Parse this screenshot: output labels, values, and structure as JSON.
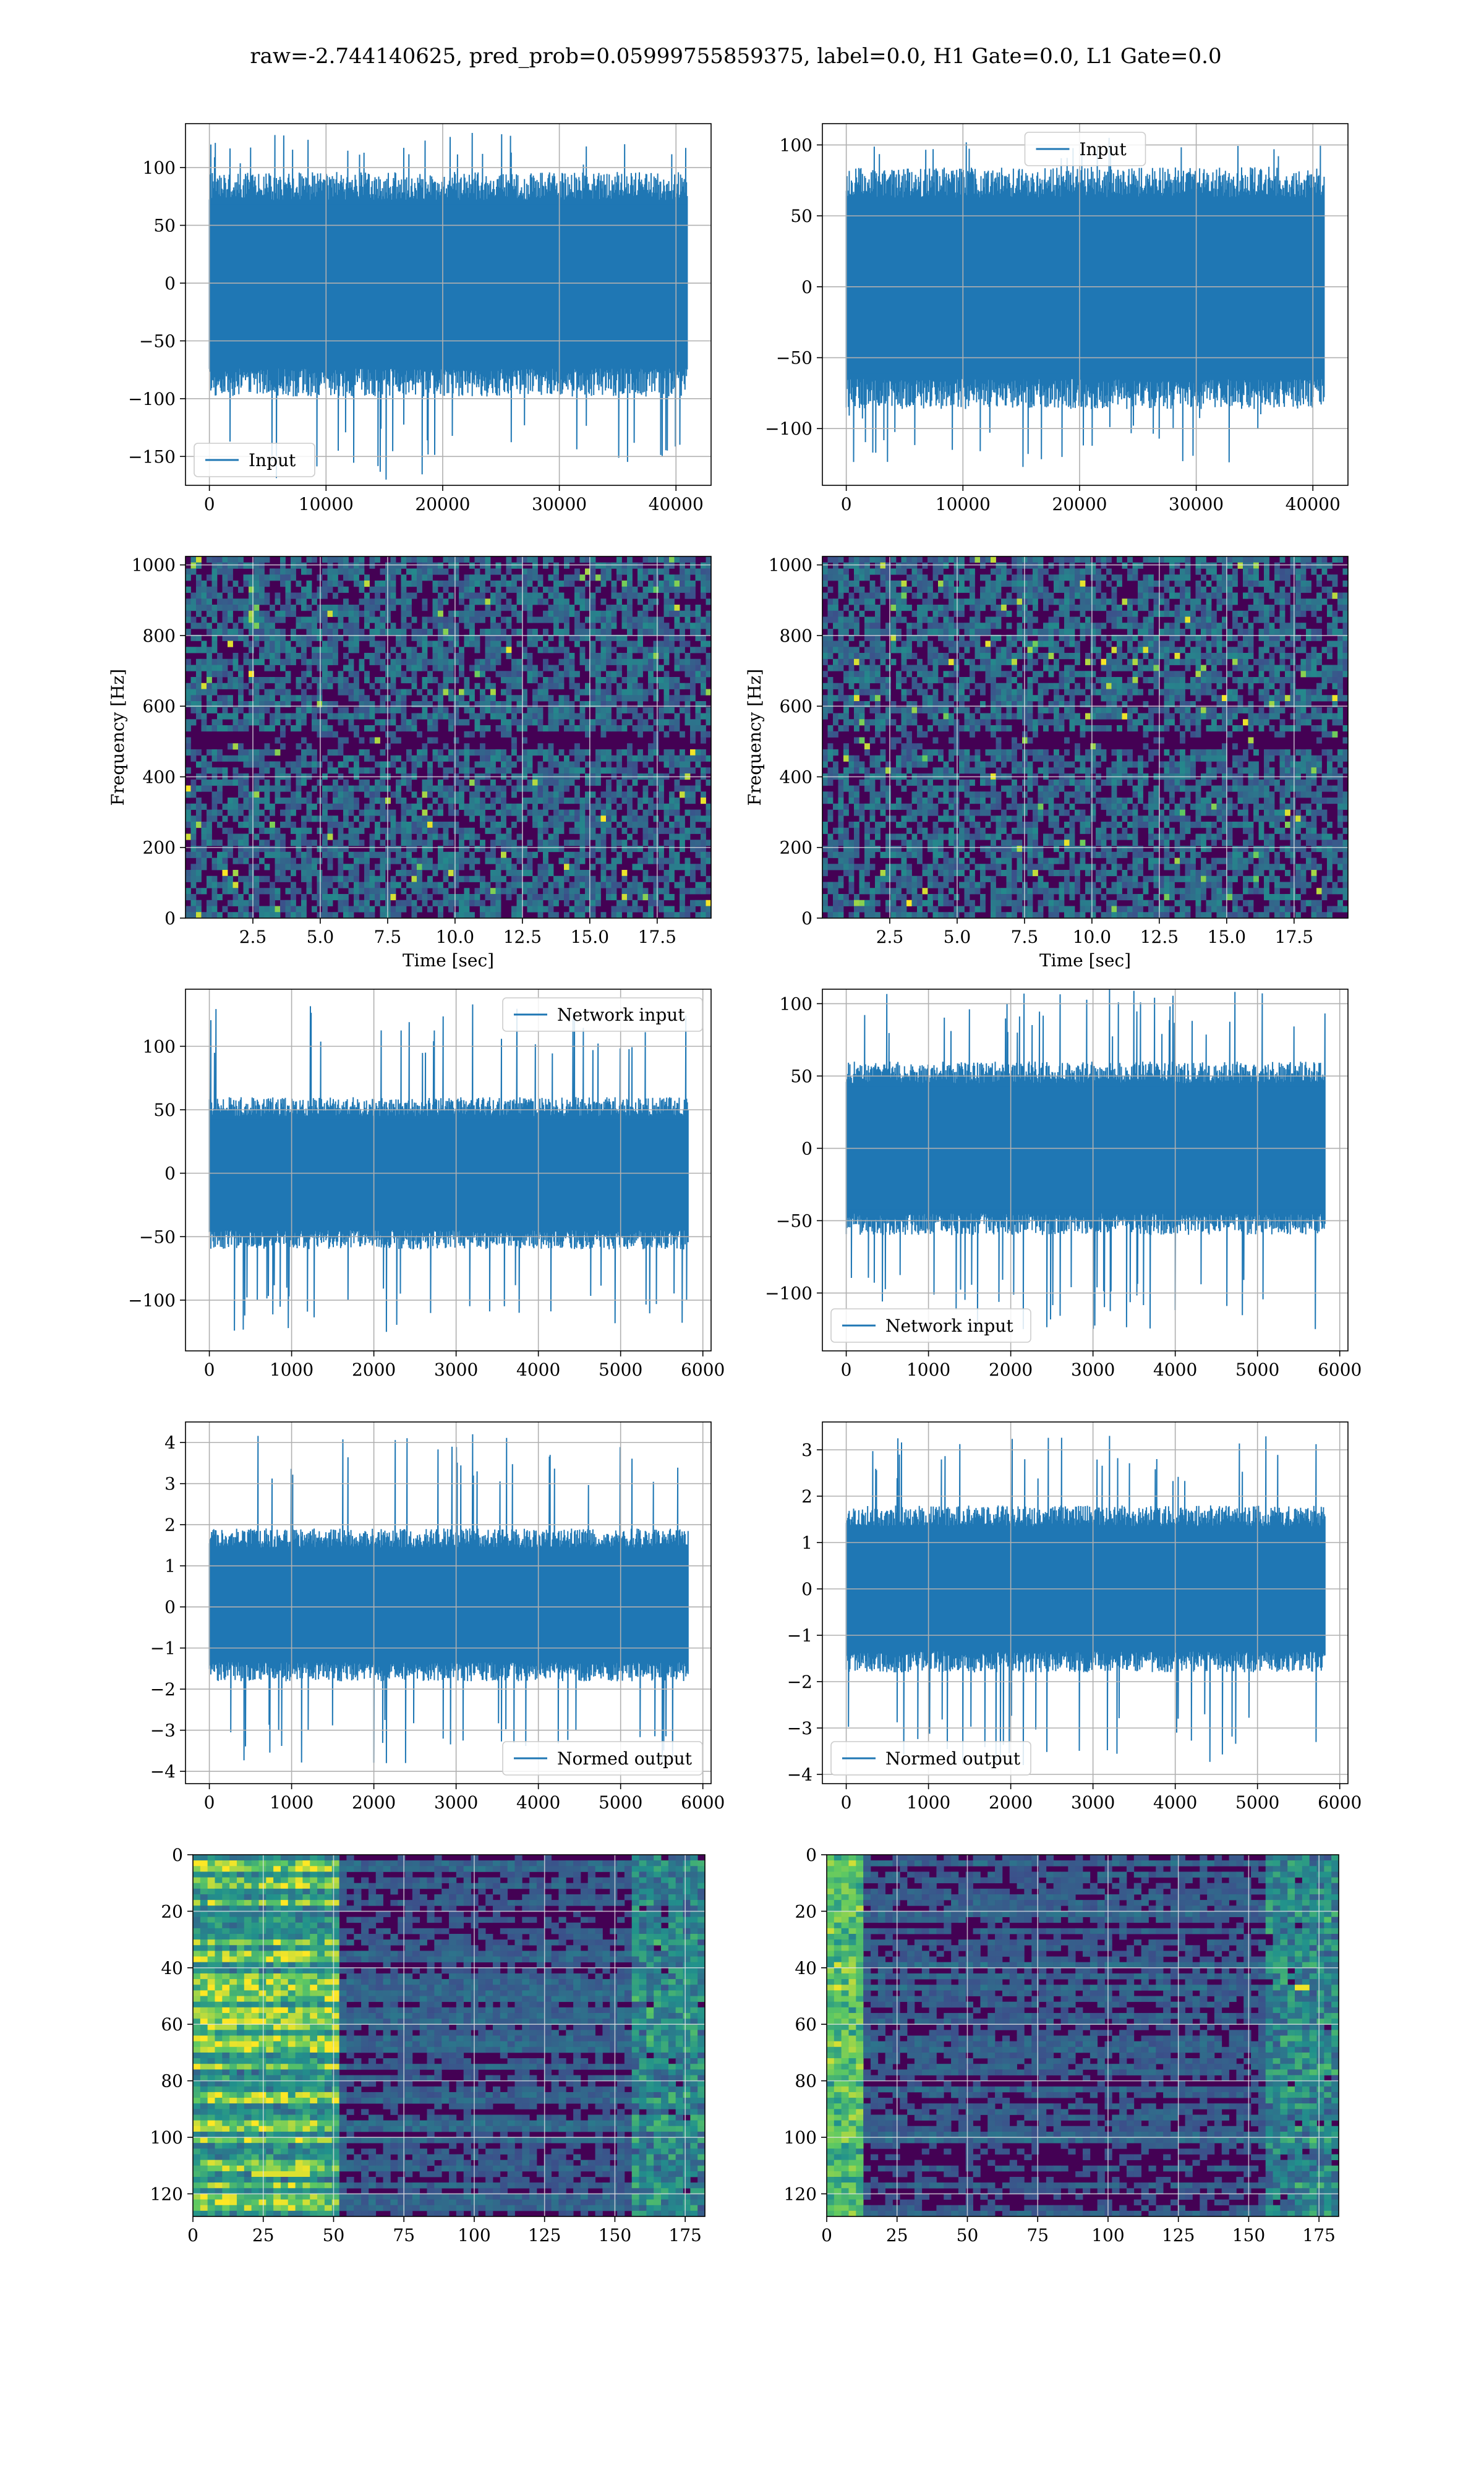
{
  "figure_title": "raw=-2.744140625, pred_prob=0.05999755859375, label=0.0, H1 Gate=0.0, L1 Gate=0.0",
  "colors": {
    "line": "#1f77b4",
    "grid": "#b0b0b0",
    "spine": "#000000",
    "heat_low": "#440154",
    "heat_mid": "#21918c",
    "heat_high": "#fde725"
  },
  "chart_data": [
    {
      "id": "input-h1",
      "type": "line",
      "legend": "Input",
      "legend_loc": "lower-left",
      "xlim": [
        -2048,
        43008
      ],
      "ylim": [
        -175,
        138
      ],
      "xticks": [
        0,
        10000,
        20000,
        30000,
        40000
      ],
      "yticks": [
        -150,
        -100,
        -50,
        0,
        50,
        100
      ],
      "series": [
        {
          "x_start": 0,
          "x_end": 40960,
          "band": [
            -82,
            80
          ],
          "extremes": [
            -170,
            130
          ]
        }
      ],
      "grid": true
    },
    {
      "id": "input-l1",
      "type": "line",
      "legend": "Input",
      "legend_loc": "upper-center",
      "xlim": [
        -2048,
        43008
      ],
      "ylim": [
        -140,
        115
      ],
      "xticks": [
        0,
        10000,
        20000,
        30000,
        40000
      ],
      "yticks": [
        -100,
        -50,
        0,
        50,
        100
      ],
      "series": [
        {
          "x_start": 0,
          "x_end": 40960,
          "band": [
            -72,
            70
          ],
          "extremes": [
            -127,
            105
          ]
        }
      ],
      "grid": true
    },
    {
      "id": "spectrogram-h1",
      "type": "heatmap",
      "xlabel": "Time [sec]",
      "ylabel": "Frequency [Hz]",
      "xlim": [
        0,
        19.5
      ],
      "ylim": [
        0,
        1024
      ],
      "xticks": [
        2.5,
        5.0,
        7.5,
        10.0,
        12.5,
        15.0,
        17.5
      ],
      "xtick_labels": [
        "2.5",
        "5.0",
        "7.5",
        "10.0",
        "12.5",
        "15.0",
        "17.5"
      ],
      "yticks": [
        0,
        200,
        400,
        600,
        800,
        1000
      ],
      "grid": true
    },
    {
      "id": "spectrogram-l1",
      "type": "heatmap",
      "xlabel": "Time [sec]",
      "ylabel": "Frequency [Hz]",
      "xlim": [
        0,
        19.5
      ],
      "ylim": [
        0,
        1024
      ],
      "xticks": [
        2.5,
        5.0,
        7.5,
        10.0,
        12.5,
        15.0,
        17.5
      ],
      "xtick_labels": [
        "2.5",
        "5.0",
        "7.5",
        "10.0",
        "12.5",
        "15.0",
        "17.5"
      ],
      "yticks": [
        0,
        200,
        400,
        600,
        800,
        1000
      ],
      "grid": true
    },
    {
      "id": "network-input-h1",
      "type": "line",
      "legend": "Network input",
      "legend_loc": "upper-right",
      "xlim": [
        -290,
        6100
      ],
      "ylim": [
        -140,
        145
      ],
      "xticks": [
        0,
        1000,
        2000,
        3000,
        4000,
        5000,
        6000
      ],
      "yticks": [
        -100,
        -50,
        0,
        50,
        100
      ],
      "series": [
        {
          "x_start": 0,
          "x_end": 5820,
          "band": [
            -50,
            50
          ],
          "extremes": [
            -125,
            133
          ]
        }
      ],
      "grid": true
    },
    {
      "id": "network-input-l1",
      "type": "line",
      "legend": "Network input",
      "legend_loc": "lower-left",
      "xlim": [
        -290,
        6100
      ],
      "ylim": [
        -140,
        110
      ],
      "xticks": [
        0,
        1000,
        2000,
        3000,
        4000,
        5000,
        6000
      ],
      "yticks": [
        -100,
        -50,
        0,
        50,
        100
      ],
      "series": [
        {
          "x_start": 0,
          "x_end": 5820,
          "band": [
            -50,
            50
          ],
          "extremes": [
            -125,
            110
          ]
        }
      ],
      "grid": true
    },
    {
      "id": "normed-output-h1",
      "type": "line",
      "legend": "Normed output",
      "legend_loc": "lower-right",
      "xlim": [
        -290,
        6100
      ],
      "ylim": [
        -4.3,
        4.5
      ],
      "xticks": [
        0,
        1000,
        2000,
        3000,
        4000,
        5000,
        6000
      ],
      "yticks": [
        -4,
        -3,
        -2,
        -1,
        0,
        1,
        2,
        3,
        4
      ],
      "series": [
        {
          "x_start": 0,
          "x_end": 5820,
          "band": [
            -1.5,
            1.6
          ],
          "extremes": [
            -3.8,
            4.2
          ]
        }
      ],
      "grid": true
    },
    {
      "id": "normed-output-l1",
      "type": "line",
      "legend": "Normed output",
      "legend_loc": "lower-left",
      "xlim": [
        -290,
        6100
      ],
      "ylim": [
        -4.2,
        3.6
      ],
      "xticks": [
        0,
        1000,
        2000,
        3000,
        4000,
        5000,
        6000
      ],
      "yticks": [
        -4,
        -3,
        -2,
        -1,
        0,
        1,
        2,
        3
      ],
      "series": [
        {
          "x_start": 0,
          "x_end": 5820,
          "band": [
            -1.5,
            1.5
          ],
          "extremes": [
            -3.8,
            3.3
          ]
        }
      ],
      "grid": true
    },
    {
      "id": "output-map-h1",
      "type": "heatmap",
      "xlim": [
        0,
        182
      ],
      "ylim": [
        128,
        0
      ],
      "xticks": [
        0,
        25,
        50,
        75,
        100,
        125,
        150,
        175
      ],
      "yticks": [
        0,
        20,
        40,
        60,
        80,
        100,
        120
      ],
      "grid": true
    },
    {
      "id": "output-map-l1",
      "type": "heatmap",
      "xlim": [
        0,
        182
      ],
      "ylim": [
        128,
        0
      ],
      "xticks": [
        0,
        25,
        50,
        75,
        100,
        125,
        150,
        175
      ],
      "yticks": [
        0,
        20,
        40,
        60,
        80,
        100,
        120
      ],
      "grid": true
    }
  ]
}
